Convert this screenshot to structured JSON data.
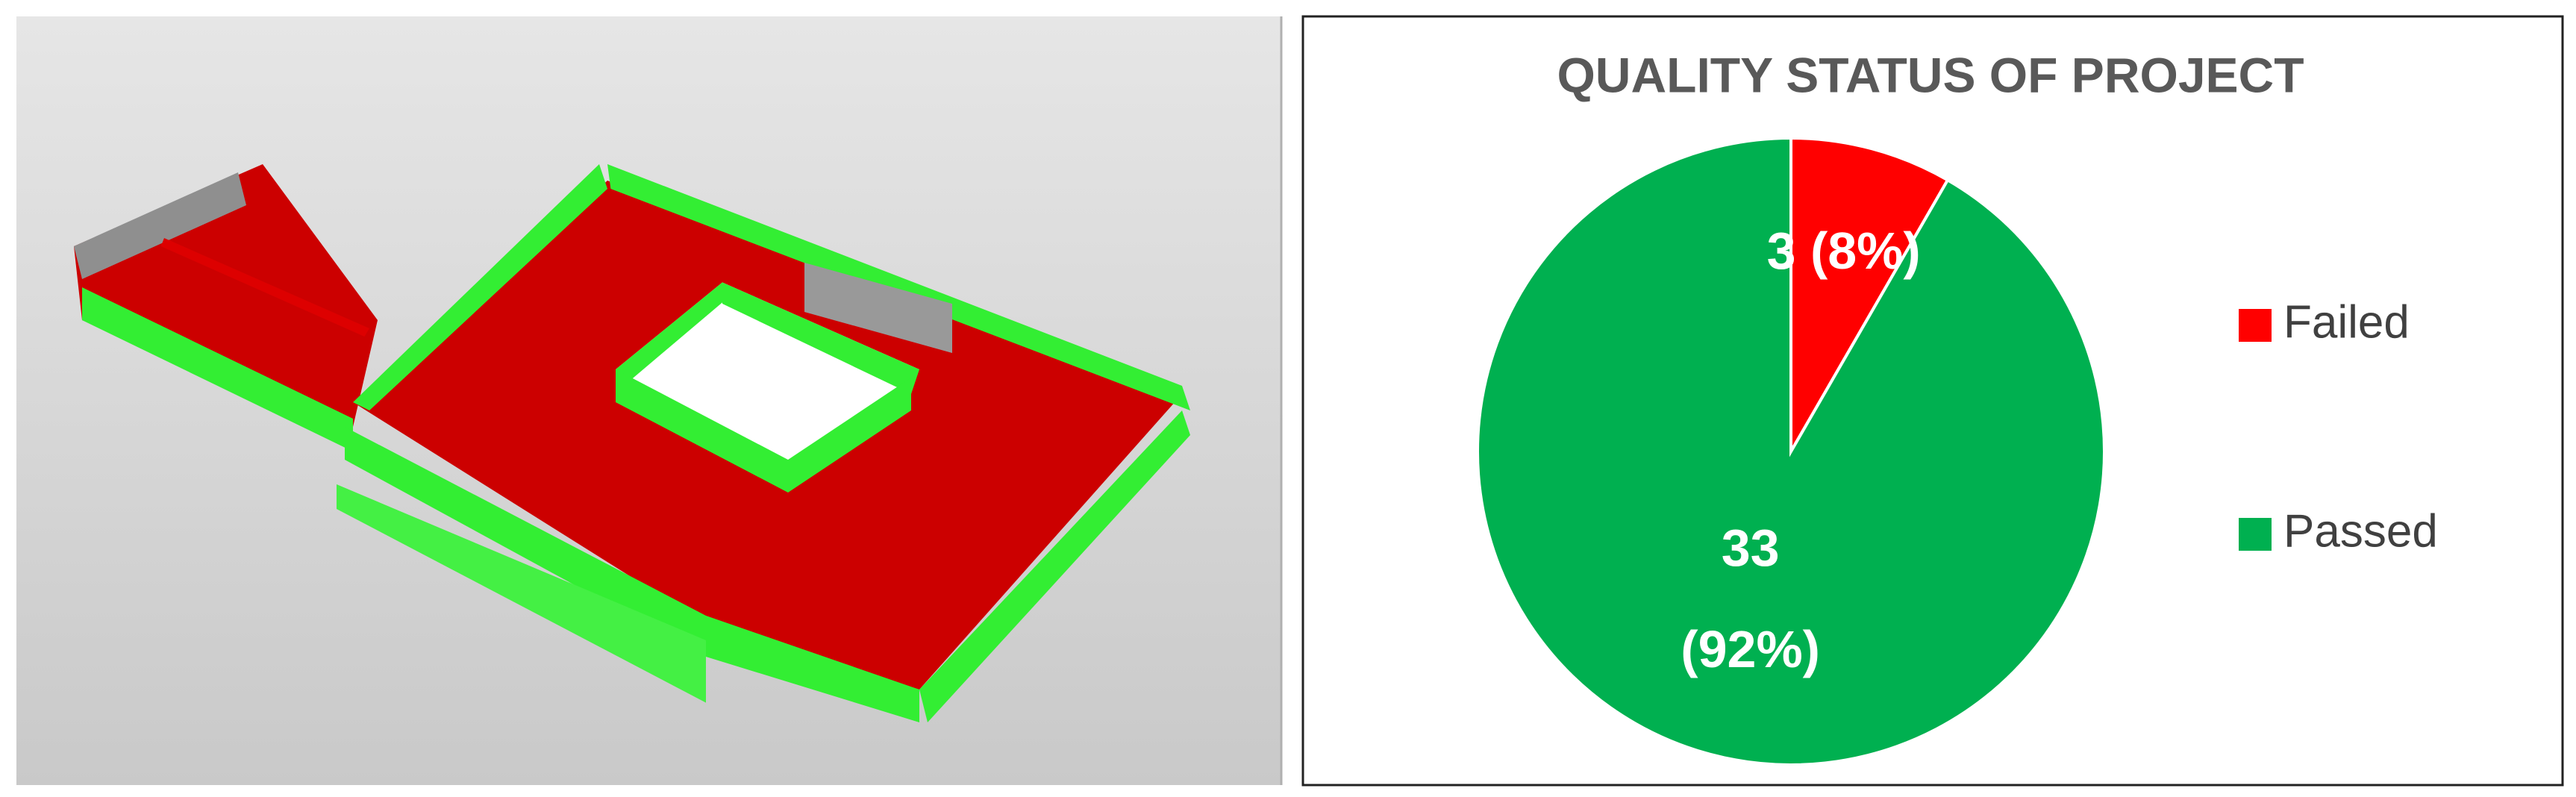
{
  "chart_data": {
    "type": "pie",
    "title": "QUALITY STATUS OF PROJECT",
    "categories": [
      "Failed",
      "Passed"
    ],
    "values": [
      3,
      33
    ],
    "value_labels": [
      "3 (8%)",
      "33 (92%)"
    ],
    "colors": [
      "#ff0000",
      "#00b050"
    ],
    "legend": "right"
  }
}
